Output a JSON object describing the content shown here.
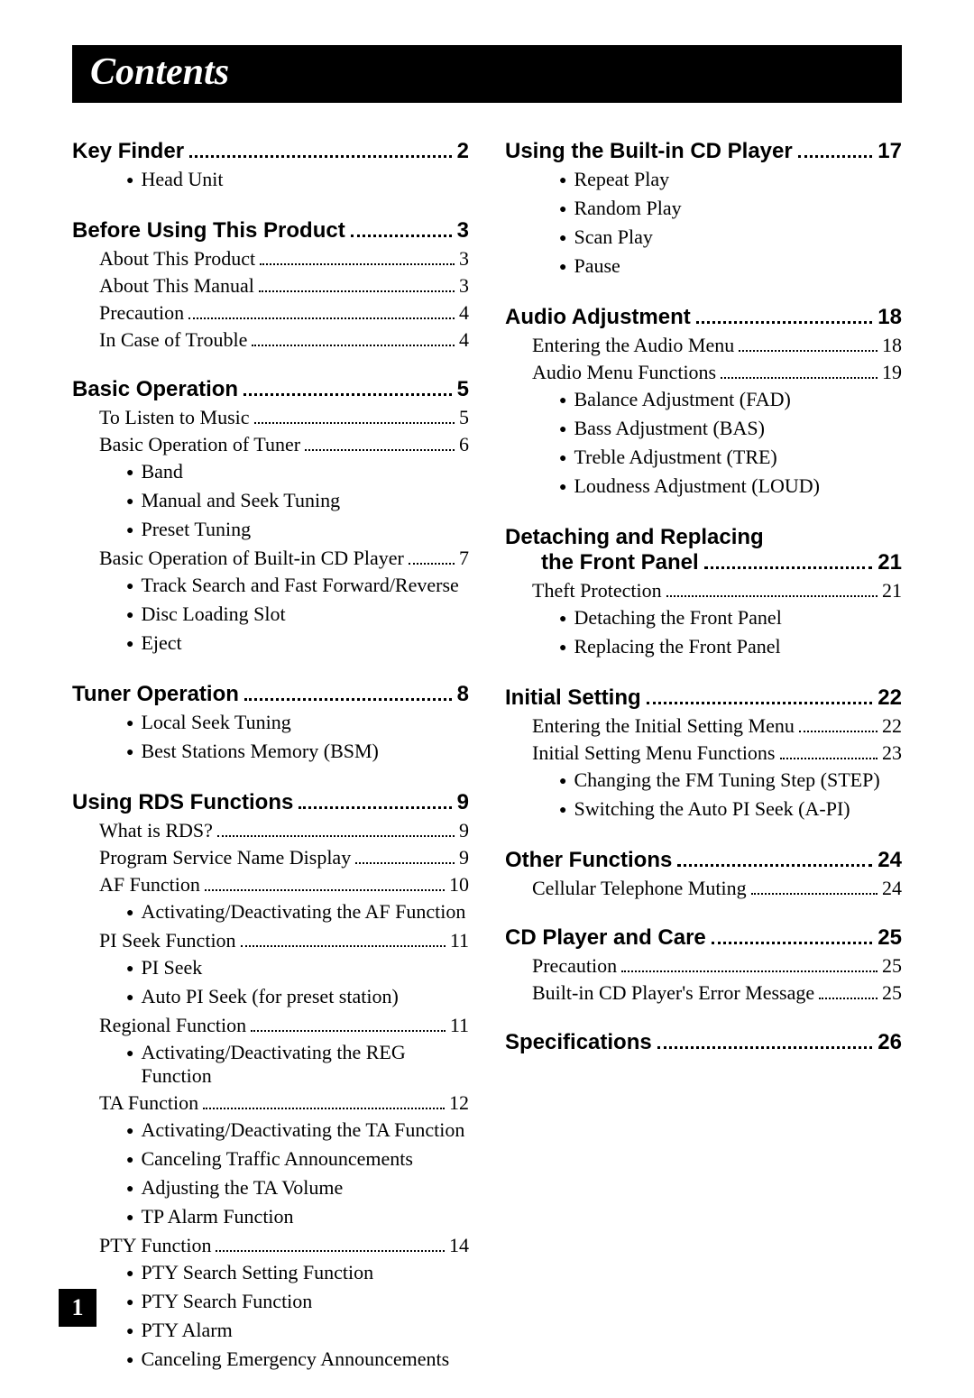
{
  "title": "Contents",
  "page_number": "1",
  "left": {
    "sections": [
      {
        "heading": "Key Finder",
        "page": "2",
        "bullets": [
          "Head Unit"
        ]
      },
      {
        "heading": "Before Using This Product",
        "page": "3",
        "entries": [
          {
            "label": "About This Product",
            "page": "3"
          },
          {
            "label": "About This Manual",
            "page": "3"
          },
          {
            "label": "Precaution",
            "page": "4"
          },
          {
            "label": "In Case of Trouble",
            "page": "4"
          }
        ]
      },
      {
        "heading": "Basic Operation",
        "page": "5",
        "entries": [
          {
            "label": "To Listen to Music",
            "page": "5"
          },
          {
            "label": "Basic Operation of Tuner",
            "page": "6",
            "bullets": [
              "Band",
              "Manual and Seek Tuning",
              "Preset Tuning"
            ]
          },
          {
            "label": "Basic Operation of Built-in CD Player",
            "page": "7",
            "bullets": [
              "Track Search and Fast Forward/Reverse",
              "Disc Loading Slot",
              "Eject"
            ]
          }
        ]
      },
      {
        "heading": "Tuner Operation",
        "page": "8",
        "bullets": [
          "Local Seek Tuning",
          "Best Stations Memory (BSM)"
        ]
      },
      {
        "heading": "Using RDS Functions",
        "page": "9",
        "entries": [
          {
            "label": "What is RDS?",
            "page": "9"
          },
          {
            "label": "Program Service Name Display",
            "page": "9"
          },
          {
            "label": "AF Function",
            "page": "10",
            "bullets": [
              "Activating/Deactivating the AF Function"
            ]
          },
          {
            "label": "PI Seek Function",
            "page": "11",
            "bullets": [
              "PI Seek",
              "Auto PI Seek (for preset station)"
            ]
          },
          {
            "label": "Regional Function",
            "page": "11",
            "bullets": [
              "Activating/Deactivating the REG Function"
            ]
          },
          {
            "label": "TA Function",
            "page": "12",
            "bullets": [
              "Activating/Deactivating the TA Function",
              "Canceling Traffic Announcements",
              "Adjusting the TA Volume",
              "TP Alarm Function"
            ]
          },
          {
            "label": "PTY Function",
            "page": "14",
            "bullets": [
              "PTY Search Setting Function",
              "PTY Search Function",
              "PTY Alarm",
              "Canceling Emergency Announcements"
            ]
          }
        ]
      }
    ]
  },
  "right": {
    "sections": [
      {
        "heading": "Using the Built-in CD Player",
        "page": "17",
        "bullets": [
          "Repeat Play",
          "Random Play",
          "Scan Play",
          "Pause"
        ]
      },
      {
        "heading": "Audio Adjustment",
        "page": "18",
        "entries": [
          {
            "label": "Entering the Audio Menu",
            "page": "18"
          },
          {
            "label": "Audio Menu Functions",
            "page": "19",
            "bullets": [
              "Balance Adjustment (FAD)",
              "Bass Adjustment (BAS)",
              "Treble Adjustment (TRE)",
              "Loudness Adjustment (LOUD)"
            ]
          }
        ]
      },
      {
        "heading_line1": "Detaching and Replacing",
        "heading_line2": "the Front Panel",
        "page": "21",
        "entries": [
          {
            "label": "Theft Protection",
            "page": "21",
            "bullets": [
              "Detaching the Front Panel",
              "Replacing the Front Panel"
            ]
          }
        ]
      },
      {
        "heading": "Initial Setting",
        "page": "22",
        "entries": [
          {
            "label": "Entering the Initial Setting Menu",
            "page": "22"
          },
          {
            "label": "Initial Setting Menu Functions",
            "page": "23",
            "bullets": [
              "Changing the FM Tuning Step (STEP)",
              "Switching the Auto PI Seek (A-PI)"
            ]
          }
        ]
      },
      {
        "heading": "Other Functions",
        "page": "24",
        "entries": [
          {
            "label": "Cellular Telephone Muting",
            "page": "24"
          }
        ]
      },
      {
        "heading": "CD Player and Care",
        "page": "25",
        "entries": [
          {
            "label": "Precaution",
            "page": "25"
          },
          {
            "label": "Built-in CD Player's Error Message",
            "page": "25"
          }
        ]
      },
      {
        "heading": "Specifications",
        "page": "26"
      }
    ]
  }
}
